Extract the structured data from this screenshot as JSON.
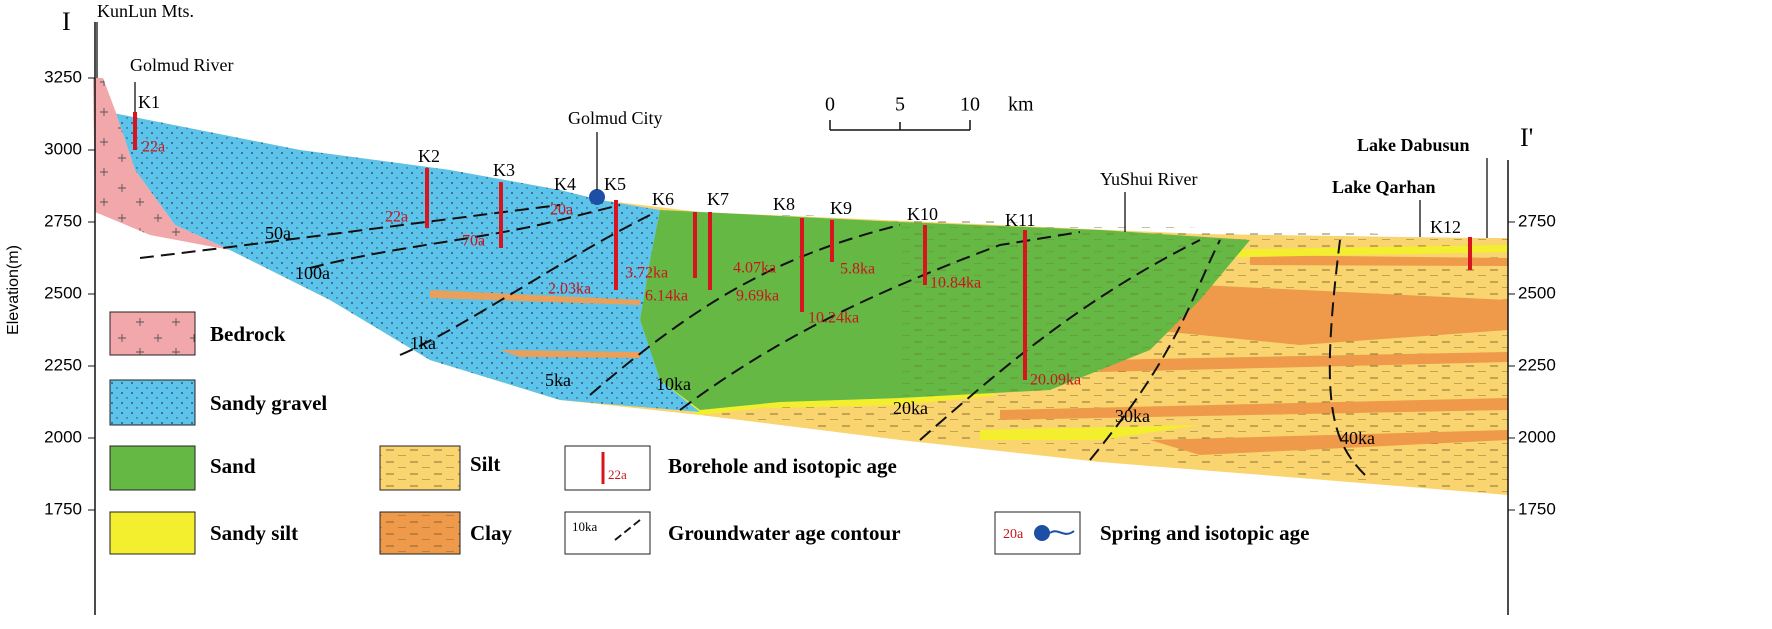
{
  "section": {
    "label_left": "I",
    "label_right": "I'"
  },
  "axis": {
    "label": "Elevation(m)",
    "left_ticks": [
      3250,
      3000,
      2750,
      2500,
      2250,
      2000,
      1750
    ],
    "right_ticks": [
      2750,
      2500,
      2250,
      2000,
      1750
    ]
  },
  "places": [
    {
      "name": "KunLun Mts."
    },
    {
      "name": "Golmud River"
    },
    {
      "name": "Golmud City"
    },
    {
      "name": "YuShui River"
    },
    {
      "name": "Lake Dabusun"
    },
    {
      "name": "Lake Qarhan"
    }
  ],
  "scale": {
    "ticks": [
      0,
      5,
      10
    ],
    "unit": "km"
  },
  "boreholes": [
    {
      "id": "K1",
      "ages": [
        "22a"
      ]
    },
    {
      "id": "K2",
      "ages": [
        "22a"
      ]
    },
    {
      "id": "K3",
      "ages": [
        "70a"
      ]
    },
    {
      "id": "K4",
      "ages": [
        "20a"
      ]
    },
    {
      "id": "K5",
      "ages": [
        "2.03ka"
      ]
    },
    {
      "id": "K6",
      "ages": [
        "3.72ka"
      ]
    },
    {
      "id": "K7",
      "ages": [
        "6.14ka"
      ]
    },
    {
      "id": "K8",
      "ages": [
        "4.07ka",
        "9.69ka",
        "10.24ka"
      ]
    },
    {
      "id": "K9",
      "ages": [
        "5.8ka"
      ]
    },
    {
      "id": "K10",
      "ages": [
        "10.84ka"
      ]
    },
    {
      "id": "K11",
      "ages": [
        "20.09ka"
      ]
    },
    {
      "id": "K12",
      "ages": []
    }
  ],
  "contours": [
    "50a",
    "100a",
    "1ka",
    "5ka",
    "10ka",
    "20ka",
    "30ka",
    "40ka"
  ],
  "legend": [
    {
      "label": "Bedrock"
    },
    {
      "label": "Sandy gravel"
    },
    {
      "label": "Sand"
    },
    {
      "label": "Silt"
    },
    {
      "label": "Sandy silt"
    },
    {
      "label": "Clay"
    },
    {
      "label": "Borehole and isotopic age",
      "icon_text": "22a"
    },
    {
      "label": "Groundwater age contour",
      "icon_text": "10ka"
    },
    {
      "label": "Spring and isotopic age",
      "icon_text": "20a"
    }
  ]
}
